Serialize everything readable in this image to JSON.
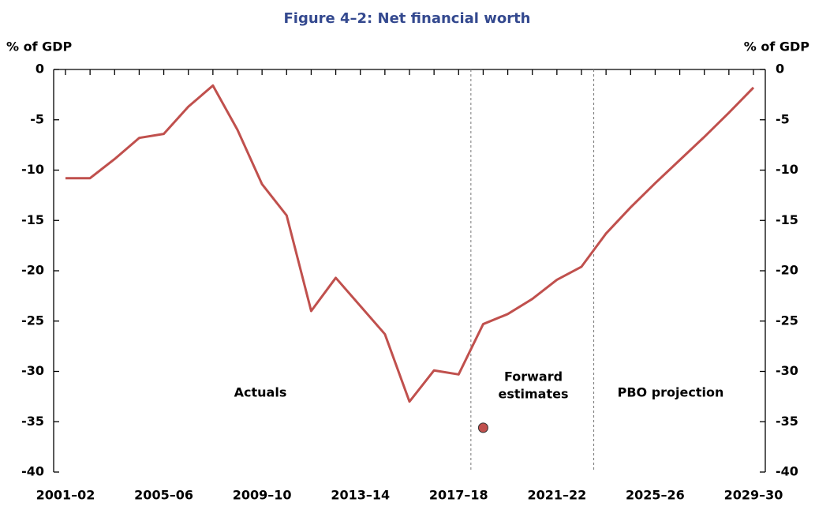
{
  "chart_data": {
    "type": "line",
    "title": "Figure 4–2: Net financial worth",
    "ylabel": "% of GDP",
    "y2label": "% of GDP",
    "categories": [
      "2001–02",
      null,
      null,
      null,
      "2005–06",
      null,
      null,
      null,
      "2009–10",
      null,
      null,
      null,
      "2013–14",
      null,
      null,
      null,
      "2017–18",
      null,
      null,
      null,
      "2021–22",
      null,
      null,
      null,
      "2025–26",
      null,
      null,
      null,
      "2029–30"
    ],
    "series": [
      {
        "color": "#c0504d",
        "values": [
          -10.8,
          -10.8,
          -8.9,
          -6.8,
          -6.4,
          -3.7,
          -1.6,
          -6.0,
          -11.4,
          -14.5,
          -24.0,
          -20.7,
          -23.5,
          -26.3,
          -33.0,
          -29.9,
          -30.3,
          -25.3,
          -24.3,
          -22.8,
          -20.9,
          -19.6,
          -16.3,
          -13.7,
          -11.3,
          -9.0,
          -6.7,
          -4.3,
          -1.8
        ]
      },
      {
        "color": "#c0504d",
        "marker": true,
        "values": [
          null,
          null,
          null,
          null,
          null,
          null,
          null,
          null,
          null,
          null,
          null,
          null,
          null,
          null,
          null,
          null,
          null,
          -35.6,
          null,
          null,
          null,
          null,
          null,
          null,
          null,
          null,
          null,
          null,
          null
        ]
      }
    ],
    "ylim": [
      -40,
      0
    ],
    "yticks": [
      0,
      -5,
      -10,
      -15,
      -20,
      -25,
      -30,
      -35,
      -40
    ],
    "y2lim": [
      -40,
      0
    ],
    "y2ticks": [
      0,
      -5,
      -10,
      -15,
      -20,
      -25,
      -30,
      -35,
      -40
    ],
    "annotations": [
      "Actuals",
      "Forward",
      "estimates",
      "PBO projection"
    ]
  }
}
